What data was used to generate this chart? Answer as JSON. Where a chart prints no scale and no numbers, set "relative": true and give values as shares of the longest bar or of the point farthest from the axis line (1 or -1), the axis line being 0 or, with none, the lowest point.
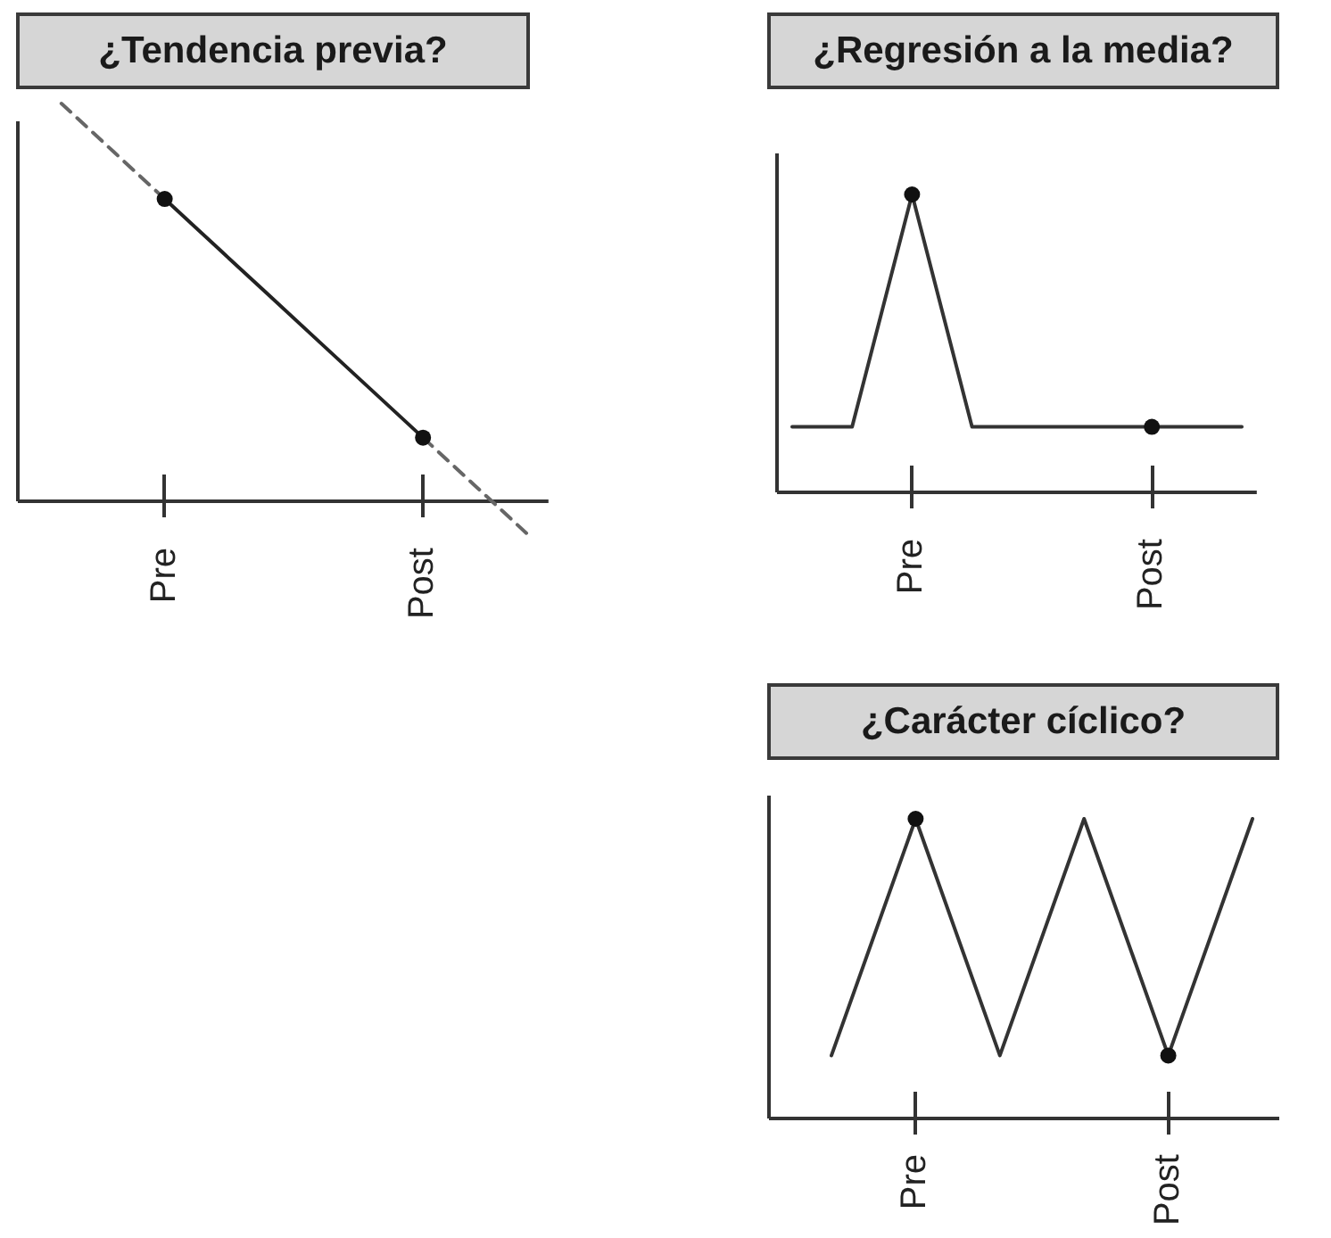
{
  "chart_data": [
    {
      "type": "line",
      "title": "¿Tendencia previa?",
      "relative": true,
      "categories": [
        null,
        null,
        "Pre",
        null,
        null,
        null,
        null,
        "Post",
        null,
        null
      ],
      "series": [
        {
          "color": "#666666",
          "line_style": "dashed",
          "values": [
            1,
            0.88,
            0.76,
            null,
            null,
            null,
            null,
            0.16,
            0.04,
            -0.08
          ]
        },
        {
          "color": "#222222",
          "values": [
            null,
            null,
            0.76,
            0.64,
            0.52,
            0.4,
            0.28,
            0.16,
            null,
            null
          ]
        },
        {
          "type": "scatter",
          "color": "#111111",
          "marker": "circle",
          "values": [
            null,
            null,
            0.76,
            null,
            null,
            null,
            null,
            0.16,
            null,
            null
          ]
        }
      ]
    },
    {
      "type": "line",
      "title": "¿Regresión a la media?",
      "relative": true,
      "categories": [
        null,
        null,
        null,
        null,
        "Pre",
        null,
        null,
        null,
        null,
        null,
        null,
        null,
        "Post",
        null,
        null,
        null
      ],
      "series": [
        {
          "color": "#333333",
          "values": [
            0.22,
            0.22,
            0.22,
            0.61,
            1,
            0.61,
            0.22,
            0.22,
            0.22,
            0.22,
            0.22,
            0.22,
            0.22,
            0.22,
            0.22,
            0.22
          ]
        },
        {
          "type": "scatter",
          "color": "#111111",
          "marker": "circle",
          "values": [
            null,
            null,
            null,
            null,
            1,
            null,
            null,
            null,
            null,
            null,
            null,
            null,
            0.22,
            null,
            null,
            null
          ]
        }
      ]
    },
    {
      "type": "line",
      "title": "¿Carácter cíclico?",
      "relative": true,
      "categories": [
        null,
        "Pre",
        null,
        null,
        "Post",
        null
      ],
      "series": [
        {
          "color": "#333333",
          "values": [
            0.21,
            1,
            0.21,
            1,
            0.21,
            1
          ]
        },
        {
          "type": "scatter",
          "color": "#111111",
          "marker": "circle",
          "values": [
            null,
            1,
            null,
            null,
            0.21,
            null
          ]
        }
      ]
    }
  ]
}
